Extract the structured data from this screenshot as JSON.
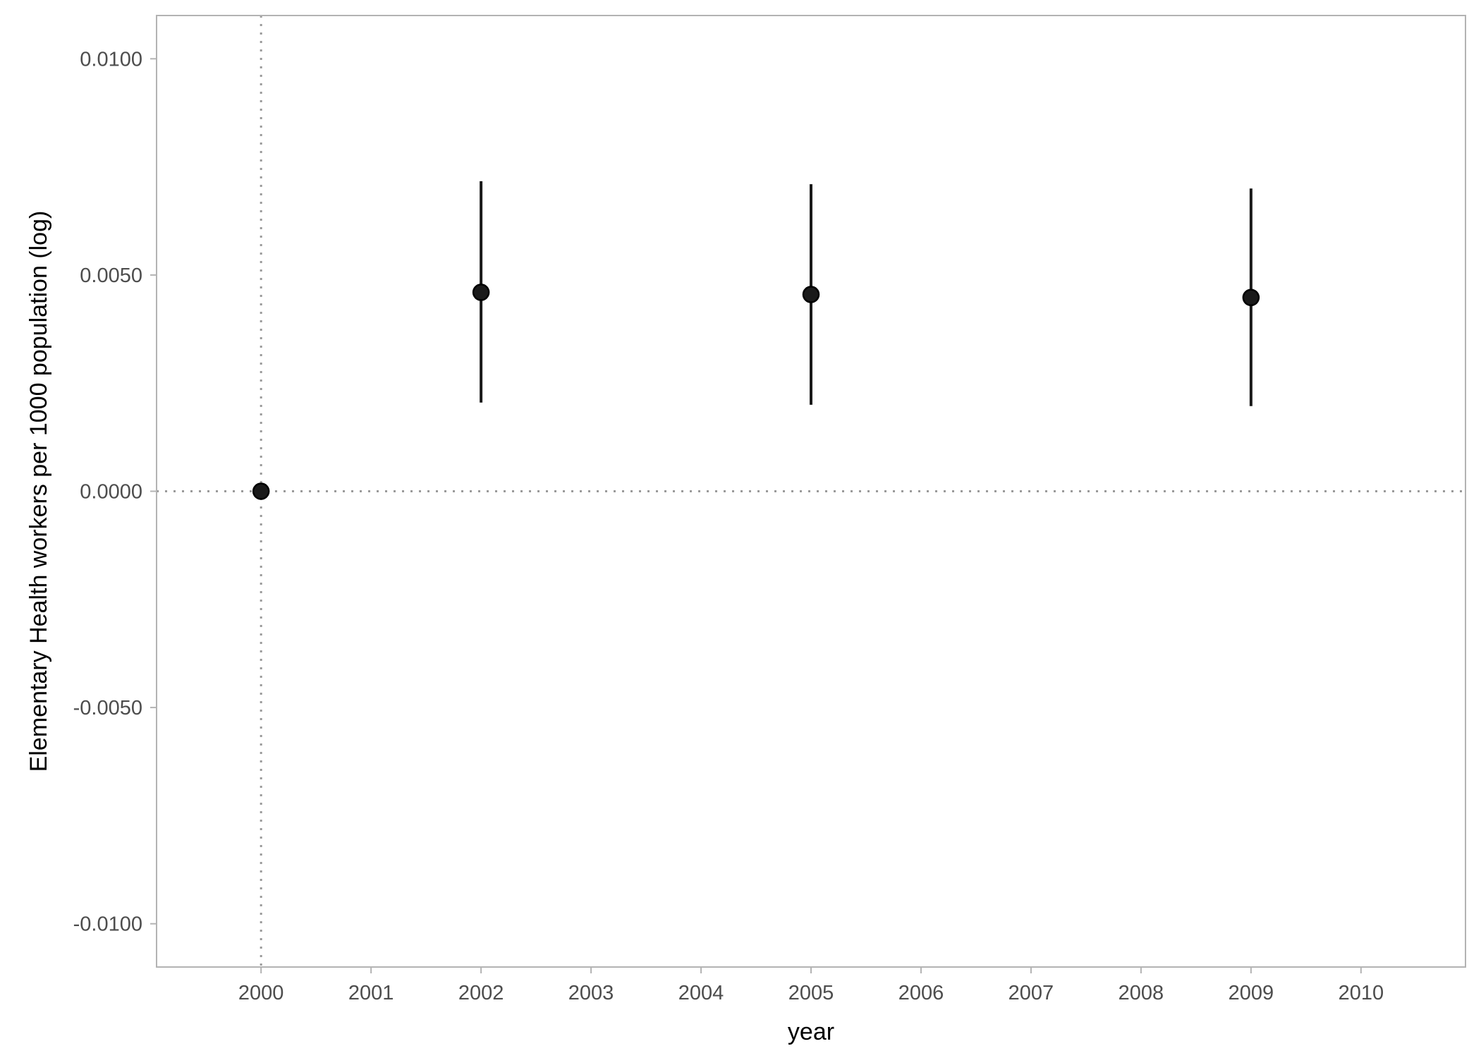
{
  "chart_data": {
    "type": "scatter",
    "title": "",
    "xlabel": "year",
    "ylabel": "Elementary Health workers per 1000 population (log)",
    "x_ticks": [
      "2000",
      "2001",
      "2002",
      "2003",
      "2004",
      "2005",
      "2006",
      "2007",
      "2008",
      "2009",
      "2010"
    ],
    "y_ticks": [
      "0.0100",
      "0.0050",
      "0.0000",
      "-0.0050",
      "-0.0100"
    ],
    "xlim": [
      1999.05,
      2010.95
    ],
    "ylim": [
      -0.011,
      0.011
    ],
    "reference_lines": {
      "x": 2000,
      "y": 0
    },
    "grid": false,
    "series": [
      {
        "points": [
          {
            "x": 2000,
            "y": 0.0,
            "lower": 0.0,
            "upper": 0.0
          },
          {
            "x": 2002,
            "y": 0.0046,
            "lower": 0.00205,
            "upper": 0.00717
          },
          {
            "x": 2005,
            "y": 0.00455,
            "lower": 0.002,
            "upper": 0.0071
          },
          {
            "x": 2009,
            "y": 0.00448,
            "lower": 0.00197,
            "upper": 0.007
          }
        ]
      }
    ],
    "colors": {
      "points": "#1a1a1a",
      "error_bars": "#1a1a1a",
      "reference": "#9a9a9a",
      "panel_border": "#b3b3b3"
    }
  }
}
